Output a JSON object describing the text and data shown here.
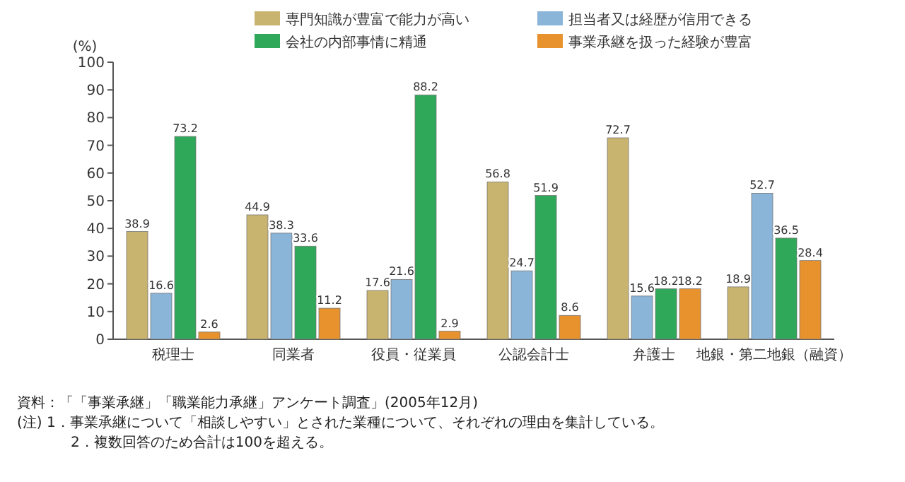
{
  "chart_data": {
    "type": "bar",
    "ylabel": "(%)",
    "categories": [
      "税理士",
      "同業者",
      "役員・従業員",
      "公認会計士",
      "弁護士",
      "地銀・第二地銀（融資）"
    ],
    "series": [
      {
        "name": "専門知識が豊富で能力が高い",
        "color": "#c8b46e",
        "values": [
          38.9,
          44.9,
          17.6,
          56.8,
          72.7,
          18.9
        ]
      },
      {
        "name": "担当者又は経歴が信用できる",
        "color": "#8ab4d8",
        "values": [
          16.6,
          38.3,
          21.6,
          24.7,
          15.6,
          52.7
        ]
      },
      {
        "name": "会社の内部事情に精通",
        "color": "#2fa85a",
        "values": [
          73.2,
          33.6,
          88.2,
          51.9,
          18.2,
          36.5
        ]
      },
      {
        "name": "事業承継を扱った経験が豊富",
        "color": "#e8922e",
        "values": [
          2.6,
          11.2,
          2.9,
          8.6,
          18.2,
          28.4
        ]
      }
    ],
    "ylim": [
      0,
      100
    ],
    "yticks": [
      0,
      10,
      20,
      30,
      40,
      50,
      60,
      70,
      80,
      90,
      100
    ],
    "data_labels": true,
    "legend": "top",
    "annotations": [
      "資料：「「事業承継」「職業能力承継」アンケート調査」(2005年12月)",
      "(注) 1．事業承継について「相談しやすい」とされた業種について、それぞれの理由を集計している。",
      "2．複数回答のため合計は100を超える。"
    ]
  }
}
